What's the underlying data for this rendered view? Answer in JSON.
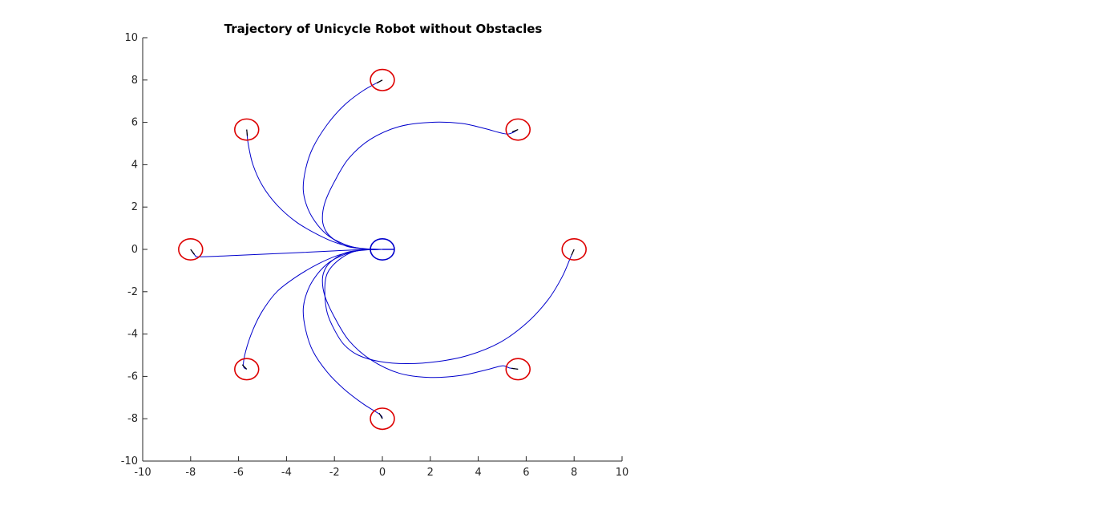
{
  "chart_data": {
    "type": "line",
    "title": "Trajectory of Unicycle Robot without Obstacles",
    "xlabel": "",
    "ylabel": "",
    "xlim": [
      -10,
      10
    ],
    "ylim": [
      -10,
      10
    ],
    "xticks": [
      -10,
      -8,
      -6,
      -4,
      -2,
      0,
      2,
      4,
      6,
      8,
      10
    ],
    "yticks": [
      -10,
      -8,
      -6,
      -4,
      -2,
      0,
      2,
      4,
      6,
      8,
      10
    ],
    "grid": false,
    "colors": {
      "trajectory": "#0000cc",
      "start_circle": "#dd0000",
      "goal_circle": "#0000cc",
      "heading": "#000000"
    },
    "robot_radius": 0.5,
    "goal": {
      "x": 0,
      "y": 0
    },
    "series": [
      {
        "start": {
          "x": 8,
          "y": 0
        },
        "x": [
          8,
          7.88,
          7.5,
          6.9,
          6.0,
          4.9,
          3.6,
          2.3,
          1.0,
          -0.1,
          -1.0,
          -1.6,
          -2.0,
          -2.3,
          -2.4,
          -2.35,
          -2.1,
          -1.7,
          -1.3,
          -1.0,
          -0.7,
          0
        ],
        "y": [
          0,
          -0.3,
          -1.3,
          -2.4,
          -3.5,
          -4.4,
          -5.0,
          -5.3,
          -5.4,
          -5.3,
          -5.0,
          -4.5,
          -3.8,
          -3.0,
          -2.1,
          -1.3,
          -0.8,
          -0.4,
          -0.15,
          -0.05,
          0,
          0
        ]
      },
      {
        "start": {
          "x": 5.66,
          "y": 5.66
        },
        "x": [
          5.66,
          5.2,
          4.3,
          3.3,
          2.0,
          0.7,
          -0.5,
          -1.4,
          -2.0,
          -2.4,
          -2.5,
          -2.35,
          -2.0,
          -1.5,
          -1.0,
          -0.6,
          0
        ],
        "y": [
          5.66,
          5.45,
          5.7,
          5.95,
          6.0,
          5.8,
          5.2,
          4.3,
          3.2,
          2.2,
          1.4,
          0.85,
          0.45,
          0.15,
          0.05,
          0,
          0
        ]
      },
      {
        "start": {
          "x": 5.66,
          "y": -5.66
        },
        "x": [
          5.66,
          5.3,
          5.0,
          4.3,
          3.3,
          2.0,
          0.7,
          -0.5,
          -1.4,
          -2.0,
          -2.4,
          -2.5,
          -2.35,
          -2.0,
          -1.5,
          -1.0,
          -0.6,
          0
        ],
        "y": [
          -5.66,
          -5.6,
          -5.5,
          -5.7,
          -5.95,
          -6.05,
          -5.85,
          -5.2,
          -4.3,
          -3.2,
          -2.2,
          -1.4,
          -0.85,
          -0.45,
          -0.15,
          -0.05,
          0,
          0
        ]
      },
      {
        "start": {
          "x": 0,
          "y": 8
        },
        "x": [
          0,
          -0.8,
          -1.6,
          -2.3,
          -2.9,
          -3.2,
          -3.3,
          -3.1,
          -2.7,
          -2.2,
          -1.6,
          -1.1,
          -0.6,
          0
        ],
        "y": [
          8,
          7.5,
          6.8,
          5.9,
          4.8,
          3.8,
          2.8,
          1.9,
          1.15,
          0.6,
          0.25,
          0.08,
          0,
          0
        ]
      },
      {
        "start": {
          "x": 0,
          "y": -8
        },
        "x": [
          0,
          -0.1,
          -0.8,
          -1.6,
          -2.3,
          -2.9,
          -3.2,
          -3.3,
          -3.1,
          -2.7,
          -2.2,
          -1.6,
          -1.1,
          -0.6,
          0
        ],
        "y": [
          -8,
          -7.8,
          -7.3,
          -6.6,
          -5.8,
          -4.8,
          -3.8,
          -2.8,
          -1.9,
          -1.15,
          -0.6,
          -0.25,
          -0.08,
          0,
          0
        ]
      },
      {
        "start": {
          "x": -5.66,
          "y": 5.66
        },
        "x": [
          -5.66,
          -5.6,
          -5.4,
          -5.0,
          -4.4,
          -3.6,
          -2.7,
          -1.9,
          -1.2,
          -0.6,
          0
        ],
        "y": [
          5.66,
          5.0,
          4.0,
          3.0,
          2.1,
          1.3,
          0.7,
          0.3,
          0.1,
          0.02,
          0
        ]
      },
      {
        "start": {
          "x": -5.66,
          "y": -5.66
        },
        "x": [
          -5.66,
          -5.8,
          -5.7,
          -5.4,
          -5.0,
          -4.4,
          -3.6,
          -2.7,
          -1.9,
          -1.2,
          -0.6,
          0
        ],
        "y": [
          -5.66,
          -5.5,
          -4.8,
          -3.8,
          -2.9,
          -2.0,
          -1.3,
          -0.7,
          -0.3,
          -0.1,
          -0.02,
          0
        ]
      },
      {
        "start": {
          "x": -8,
          "y": 0
        },
        "x": [
          -8,
          -7.8,
          -7.6,
          -6.0,
          -4.0,
          -2.0,
          -1.0,
          0
        ],
        "y": [
          0,
          -0.3,
          -0.35,
          -0.28,
          -0.18,
          -0.07,
          -0.02,
          0
        ]
      }
    ]
  }
}
